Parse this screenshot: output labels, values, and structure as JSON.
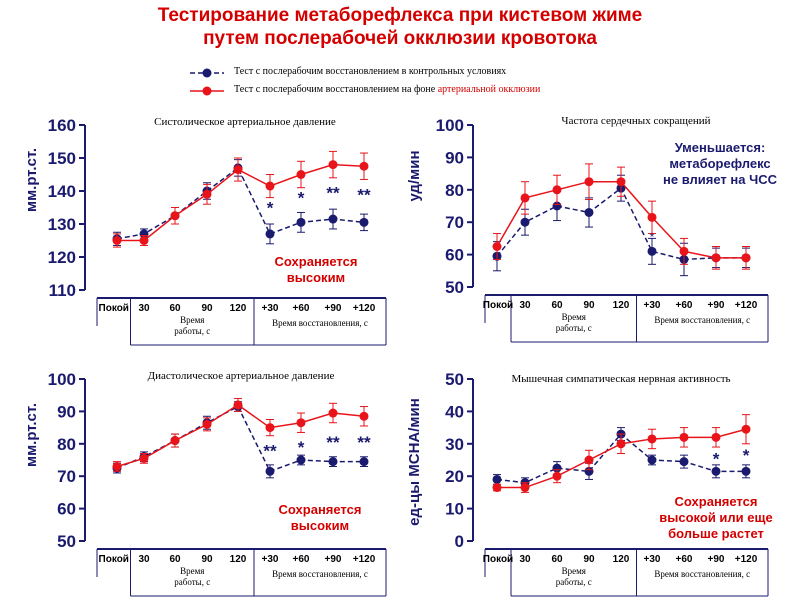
{
  "title_lines": [
    "Тестирование метаборефлекса при кистевом жиме",
    "путем послерабочей окклюзии кровотока"
  ],
  "legend": {
    "control": "Тест с послерабочим восстановлением в контрольных условиях",
    "occlusion_prefix": "Тест с послерабочим восстановлением на фоне ",
    "occlusion_suffix": "артериальной окклюзии"
  },
  "colors": {
    "title": "#d40000",
    "control": "#1a1a6e",
    "occlusion": "#e8141a",
    "axis": "#1a1a6e",
    "annotation": "#d40000",
    "note_blue": "#1a1a6e"
  },
  "chart_data": [
    {
      "type": "line",
      "title": "Систолическое артериальное давление",
      "ylabel": "мм.рт.ст.",
      "ylim": [
        110,
        160
      ],
      "yticks": [
        110,
        120,
        130,
        140,
        150,
        160
      ],
      "categories": [
        "Покой",
        "30",
        "60",
        "90",
        "120",
        "+30",
        "+60",
        "+90",
        "+120"
      ],
      "work_label": "Время работы, с",
      "recovery_label": "Время восстановления, с",
      "series": [
        {
          "name": "control",
          "values": [
            125.5,
            127,
            132.5,
            140,
            147,
            127,
            130.5,
            131.5,
            130.5
          ],
          "errors": [
            2,
            1.5,
            2.5,
            2.5,
            2.5,
            3,
            3,
            3,
            2.5
          ]
        },
        {
          "name": "occlusion",
          "values": [
            125,
            125,
            132.5,
            139,
            146.5,
            141.5,
            145,
            148,
            147.5
          ],
          "errors": [
            2,
            1.5,
            2.5,
            3,
            3.5,
            3.5,
            4,
            4,
            4
          ]
        }
      ],
      "significance": [
        {
          "category": "+30",
          "mark": "*",
          "value": 135
        },
        {
          "category": "+60",
          "mark": "*",
          "value": 138
        },
        {
          "category": "+90",
          "mark": "**",
          "value": 139.5
        },
        {
          "category": "+120",
          "mark": "**",
          "value": 139
        }
      ],
      "annotation": [
        "Сохраняется",
        "высоким"
      ],
      "annotation_color": "red"
    },
    {
      "type": "line",
      "title": "Частота сердечных сокращений",
      "ylabel": "уд/мин",
      "ylim": [
        50,
        100
      ],
      "yticks": [
        50,
        60,
        70,
        80,
        90,
        100
      ],
      "categories": [
        "Покой",
        "30",
        "60",
        "90",
        "120",
        "+30",
        "+60",
        "+90",
        "+120"
      ],
      "work_label": "Время работы, с",
      "recovery_label": "Время восстановления, с",
      "series": [
        {
          "name": "control",
          "values": [
            59.5,
            70,
            75,
            73,
            80.5,
            61,
            58.5,
            59,
            59
          ],
          "errors": [
            4.5,
            4,
            4.5,
            4.5,
            4,
            4,
            5,
            3,
            3
          ]
        },
        {
          "name": "occlusion",
          "values": [
            62.5,
            77.5,
            80,
            82.5,
            82.5,
            71.5,
            61,
            59,
            59
          ],
          "errors": [
            4,
            5,
            4.5,
            5.5,
            4.5,
            5,
            4,
            3.5,
            3.5
          ]
        }
      ],
      "significance": [
        {
          "category": "+30",
          "mark": "*",
          "value": 66
        }
      ],
      "annotation": [
        "Уменьшается:",
        "метаборефлекс",
        "не влияет на ЧСС"
      ],
      "annotation_color": "blue"
    },
    {
      "type": "line",
      "title": "Диастолическое артериальное давление",
      "ylabel": "мм.рт.ст.",
      "ylim": [
        50,
        100
      ],
      "yticks": [
        50,
        60,
        70,
        80,
        90,
        100
      ],
      "categories": [
        "Покой",
        "30",
        "60",
        "90",
        "120",
        "+30",
        "+60",
        "+90",
        "+120"
      ],
      "work_label": "Время работы, с",
      "recovery_label": "Время восстановления, с",
      "series": [
        {
          "name": "control",
          "values": [
            72.5,
            76,
            81,
            86.5,
            91.5,
            71.5,
            75,
            74.5,
            74.5
          ],
          "errors": [
            1.5,
            1.5,
            2,
            2,
            1.5,
            2,
            1.5,
            1.5,
            1.5
          ]
        },
        {
          "name": "occlusion",
          "values": [
            73,
            75.5,
            81,
            86,
            92,
            85,
            86.5,
            89.5,
            88.5
          ],
          "errors": [
            1.5,
            1.5,
            2,
            2,
            2,
            2.5,
            3,
            3,
            3
          ]
        }
      ],
      "significance": [
        {
          "category": "+30",
          "mark": "**",
          "value": 78
        },
        {
          "category": "+60",
          "mark": "*",
          "value": 79
        },
        {
          "category": "+90",
          "mark": "**",
          "value": 80.5
        },
        {
          "category": "+120",
          "mark": "**",
          "value": 80.5
        }
      ],
      "annotation": [
        "Сохраняется",
        "высоким"
      ],
      "annotation_color": "red"
    },
    {
      "type": "line",
      "title": "Мышечная симпатическая нервная активность",
      "ylabel": "ед-цы МСНА/мин",
      "ylim": [
        0,
        50
      ],
      "yticks": [
        0,
        10,
        20,
        30,
        40,
        50
      ],
      "categories": [
        "Покой",
        "30",
        "60",
        "90",
        "120",
        "+30",
        "+60",
        "+90",
        "+120"
      ],
      "work_label": "Время работы, с",
      "recovery_label": "Время восстановления, с",
      "series": [
        {
          "name": "control",
          "values": [
            19,
            18,
            22.5,
            21.5,
            33,
            25,
            24.5,
            21.5,
            21.5
          ],
          "errors": [
            1.5,
            1.5,
            2,
            2.5,
            2,
            1.5,
            2,
            2,
            2
          ]
        },
        {
          "name": "occlusion",
          "values": [
            16.5,
            16.5,
            20,
            25,
            30,
            31.5,
            32,
            32,
            34.5
          ],
          "errors": [
            1,
            1.5,
            2,
            3,
            3,
            3,
            3,
            3,
            4.5
          ]
        }
      ],
      "significance": [
        {
          "category": "+90",
          "mark": "*",
          "value": 25.5
        },
        {
          "category": "+120",
          "mark": "*",
          "value": 26.5
        }
      ],
      "annotation": [
        "Сохраняется",
        "высокой или еще",
        "больше растет"
      ],
      "annotation_color": "red"
    }
  ]
}
